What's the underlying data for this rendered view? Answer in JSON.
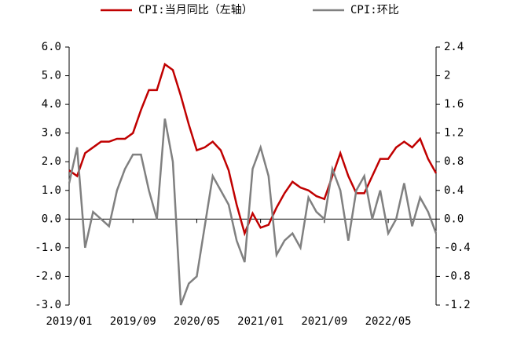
{
  "chart_data": {
    "type": "line",
    "categories": [
      "2019/01",
      null,
      null,
      null,
      null,
      null,
      null,
      null,
      "2019/09",
      null,
      null,
      null,
      null,
      null,
      null,
      null,
      "2020/05",
      null,
      null,
      null,
      null,
      null,
      null,
      null,
      "2021/01",
      null,
      null,
      null,
      null,
      null,
      null,
      null,
      "2021/09",
      null,
      null,
      null,
      null,
      null,
      null,
      null,
      "2022/05",
      null,
      null,
      null,
      null,
      null,
      null
    ],
    "series": [
      {
        "name": "CPI:当月同比（左轴）",
        "color": "#c00000",
        "values": [
          1.7,
          1.5,
          2.3,
          2.5,
          2.7,
          2.7,
          2.8,
          2.8,
          3.0,
          3.8,
          4.5,
          4.5,
          5.4,
          5.2,
          4.3,
          3.3,
          2.4,
          2.5,
          2.7,
          2.4,
          1.7,
          0.5,
          -0.5,
          0.2,
          -0.3,
          -0.2,
          0.4,
          0.9,
          1.3,
          1.1,
          1.0,
          0.8,
          0.7,
          1.5,
          2.3,
          1.5,
          0.9,
          0.9,
          1.5,
          2.1,
          2.1,
          2.5,
          2.7,
          2.5,
          2.8,
          2.1,
          1.6
        ]
      },
      {
        "name": "CPI:环比",
        "color": "#808080",
        "axis": "y2",
        "values": [
          0.5,
          1.0,
          -0.4,
          0.1,
          0.0,
          -0.1,
          0.4,
          0.7,
          0.9,
          0.9,
          0.4,
          0.0,
          1.4,
          0.8,
          -1.2,
          -0.9,
          -0.8,
          -0.1,
          0.6,
          0.4,
          0.2,
          -0.3,
          -0.6,
          0.7,
          1.0,
          0.6,
          -0.5,
          -0.3,
          -0.2,
          -0.4,
          0.3,
          0.1,
          0.0,
          0.7,
          0.4,
          -0.3,
          0.4,
          0.6,
          0.0,
          0.4,
          -0.2,
          0.0,
          0.5,
          -0.1,
          0.3,
          0.1,
          -0.2
        ]
      }
    ],
    "ylim": [
      -3,
      6
    ],
    "yticks": [
      {
        "value": 6,
        "label": "6.0"
      },
      {
        "value": 5,
        "label": "5.0"
      },
      {
        "value": 4,
        "label": "4.0"
      },
      {
        "value": 3,
        "label": "3.0"
      },
      {
        "value": 2,
        "label": "2.0"
      },
      {
        "value": 1,
        "label": "1.0"
      },
      {
        "value": 0,
        "label": "0.0"
      },
      {
        "value": -1,
        "label": "-1.0"
      },
      {
        "value": -2,
        "label": "-2.0"
      },
      {
        "value": -3,
        "label": "-3.0"
      }
    ],
    "y2lim": [
      -1.2,
      2.4
    ],
    "y2ticks": [
      2.4,
      2.0,
      1.6,
      1.2,
      0.8,
      0.4,
      {
        "value": 0,
        "label": "0.0"
      },
      -0.4,
      -0.8,
      -1.2
    ],
    "legend": "top"
  }
}
